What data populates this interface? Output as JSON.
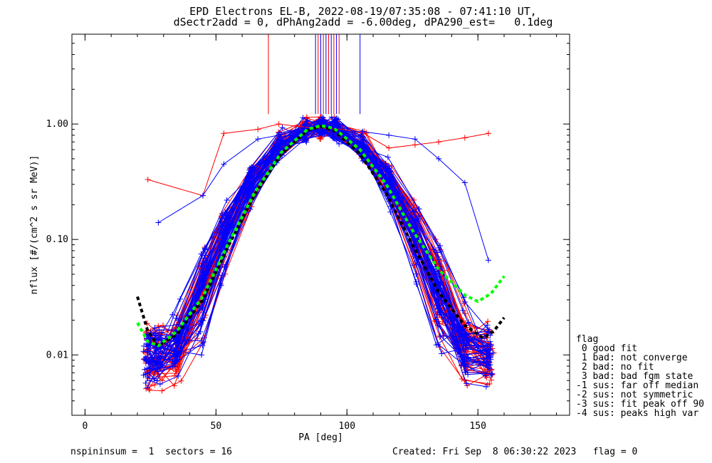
{
  "header": {
    "title_line1": "EPD Electrons EL-B, 2022-08-19/07:35:08 - 07:41:10 UT,",
    "title_line2": "dSectr2add = 0, dPhAng2add = -6.00deg, dPA290_est=   0.1deg"
  },
  "footer": {
    "left": "nspininsum =  1  sectors = 16",
    "right": "Created: Fri Sep  8 06:30:22 2023   flag = 0"
  },
  "legend": {
    "title": "flag",
    "items": [
      " 0 good fit",
      " 1 bad: not converge",
      " 2 bad: no fit",
      " 3 bad: bad fgm state",
      "-1 sus: far off median",
      "-2 sus: not symmetric",
      "-3 sus: fit peak off 90",
      "-4 sus: peaks high var"
    ]
  },
  "colors": {
    "series_a": "#ff0000",
    "series_b": "#0000ff",
    "fit_median": "#000000",
    "fit_alt": "#00ff00"
  },
  "chart_data": {
    "type": "line",
    "xlabel": "PA [deg]",
    "ylabel": "nflux [#/(cm^2 s sr MeV)]",
    "xlim": [
      -5,
      185
    ],
    "ylim": [
      0.003,
      6
    ],
    "yscale": "log",
    "x_ticks": [
      0,
      50,
      100,
      150
    ],
    "y_ticks": [
      0.01,
      0.1,
      1.0
    ],
    "y_tick_labels": [
      "0.01",
      "0.10",
      "1.00"
    ],
    "grid": false,
    "profile_center_deg": 90,
    "profile_peak": 0.95,
    "series": [
      {
        "color": "red",
        "x": [
          24,
          45,
          53,
          66,
          74,
          82,
          90,
          98,
          106,
          116,
          126,
          135,
          145,
          154
        ],
        "y": [
          0.33,
          0.24,
          0.83,
          0.9,
          1.0,
          0.95,
          0.92,
          0.9,
          0.84,
          0.62,
          0.66,
          0.7,
          0.76,
          0.83
        ]
      },
      {
        "color": "blue",
        "x": [
          28,
          45,
          53,
          66,
          74,
          84,
          90,
          98,
          106,
          116,
          126,
          135,
          145,
          154
        ],
        "y": [
          0.14,
          0.24,
          0.45,
          0.74,
          0.8,
          0.9,
          0.88,
          0.86,
          0.86,
          0.8,
          0.74,
          0.5,
          0.31,
          0.066
        ]
      },
      {
        "color": "black-dashed",
        "x": [
          20,
          24,
          28,
          35,
          45,
          55,
          65,
          75,
          85,
          90,
          95,
          105,
          115,
          125,
          135,
          145,
          152,
          156,
          160
        ],
        "y": [
          0.032,
          0.016,
          0.012,
          0.015,
          0.03,
          0.09,
          0.25,
          0.55,
          0.88,
          0.95,
          0.88,
          0.55,
          0.25,
          0.09,
          0.035,
          0.018,
          0.014,
          0.016,
          0.021
        ]
      },
      {
        "color": "green-dashed",
        "x": [
          20,
          24,
          28,
          35,
          45,
          55,
          65,
          75,
          85,
          90,
          95,
          105,
          115,
          125,
          135,
          145,
          150,
          155,
          160
        ],
        "y": [
          0.019,
          0.013,
          0.012,
          0.016,
          0.032,
          0.095,
          0.26,
          0.57,
          0.9,
          0.97,
          0.92,
          0.6,
          0.3,
          0.12,
          0.055,
          0.033,
          0.029,
          0.034,
          0.048
        ]
      }
    ]
  }
}
